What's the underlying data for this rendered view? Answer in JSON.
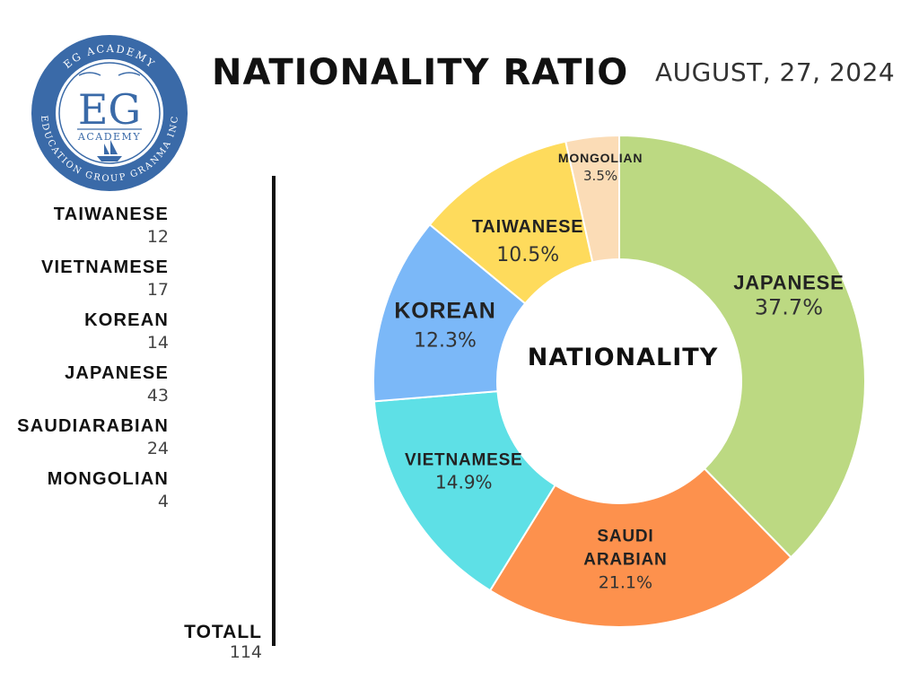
{
  "logo": {
    "top_text": "EG ACADEMY",
    "monogram": "EG",
    "subtitle": "ACADEMY",
    "bottom_text": "EDUCATION GROUP GRANMA INC",
    "icon": "ship-icon",
    "color": "#3a6aa8"
  },
  "header": {
    "title": "NATIONALITY RATIO",
    "date": "AUGUST, 27, 2024"
  },
  "legend": [
    {
      "name": "TAIWANESE",
      "count": "12"
    },
    {
      "name": "VIETNAMESE",
      "count": "17"
    },
    {
      "name": "KOREAN",
      "count": "14"
    },
    {
      "name": "JAPANESE",
      "count": "43"
    },
    {
      "name": "SAUDIARABIAN",
      "count": "24"
    },
    {
      "name": "MONGOLIAN",
      "count": "4"
    }
  ],
  "total": {
    "label": "TOTALL",
    "value": "114"
  },
  "chart_data": {
    "type": "pie",
    "donut": true,
    "center_label": "NATIONALITY",
    "slices": [
      {
        "label": "JAPANESE",
        "value": 37.7,
        "display": "37.7%",
        "color": "#bcd982"
      },
      {
        "label": "SAUDI ARABIAN",
        "value": 21.1,
        "display": "21.1%",
        "color": "#fd914d"
      },
      {
        "label": "VIETNAMESE",
        "value": 14.9,
        "display": "14.9%",
        "color": "#5ee0e6"
      },
      {
        "label": "KOREAN",
        "value": 12.3,
        "display": "12.3%",
        "color": "#7bb8f8"
      },
      {
        "label": "TAIWANESE",
        "value": 10.5,
        "display": "10.5%",
        "color": "#fedb5c"
      },
      {
        "label": "MONGOLIAN",
        "value": 3.5,
        "display": "3.5%",
        "color": "#fbdcb6"
      }
    ]
  }
}
